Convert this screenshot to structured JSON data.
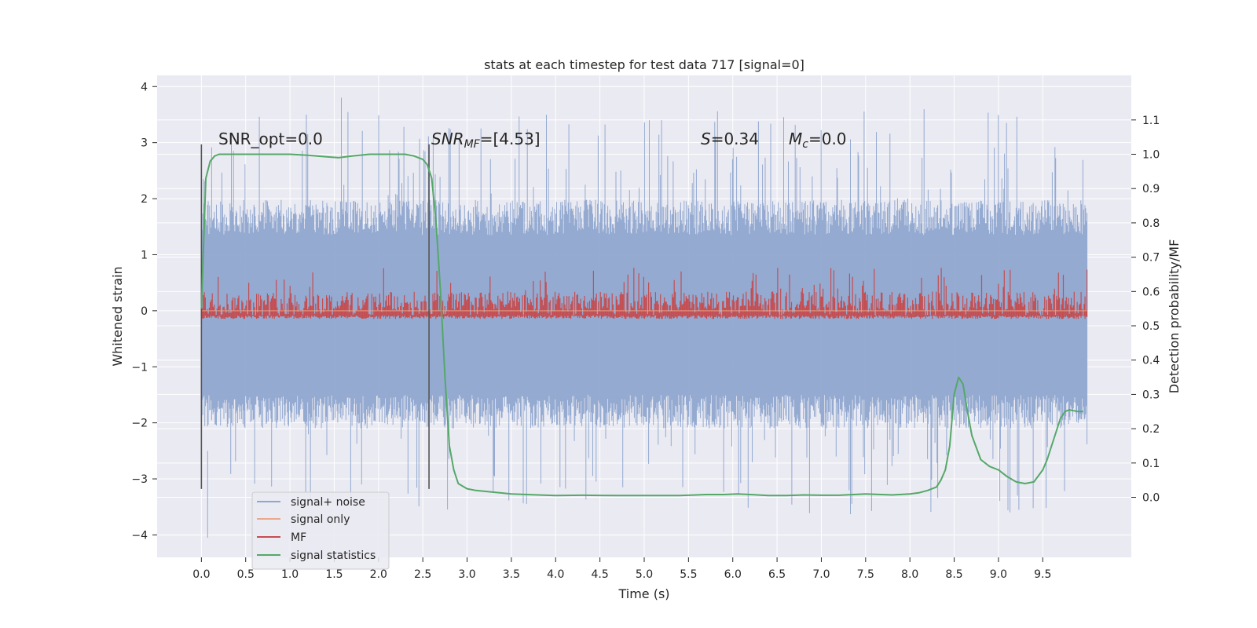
{
  "chart_data": {
    "type": "line",
    "title": "stats at each timestep for test data 717 [signal=0]",
    "xlabel": "Time (s)",
    "ylabel": "Whitened strain",
    "y2label": "Detection probability/MF",
    "xlim": [
      -0.5,
      10.5
    ],
    "ylim": [
      -4.4,
      4.2
    ],
    "y2lim": [
      -0.175,
      1.23
    ],
    "x_ticks": [
      0.0,
      0.5,
      1.0,
      1.5,
      2.0,
      2.5,
      3.0,
      3.5,
      4.0,
      4.5,
      5.0,
      5.5,
      6.0,
      6.5,
      7.0,
      7.5,
      8.0,
      8.5,
      9.0,
      9.5
    ],
    "y_ticks": [
      -4,
      -3,
      -2,
      -1,
      0,
      1,
      2,
      3,
      4
    ],
    "y2_ticks": [
      0.0,
      0.1,
      0.2,
      0.3,
      0.4,
      0.5,
      0.6,
      0.7,
      0.8,
      0.9,
      1.0,
      1.1
    ],
    "grid": true,
    "legend_position": "lower-left",
    "annotations": {
      "snr_opt": "SNR_opt=0.0",
      "snr_mf_italic": "SNR",
      "snr_mf_sub": "MF",
      "snr_mf_value": "=[4.53]",
      "s_italic": "S",
      "s_value": "=0.34",
      "mc_italic": "M",
      "mc_sub": "c",
      "mc_value": "=0.0"
    },
    "vertical_lines_x": [
      0.0,
      2.57
    ],
    "series": [
      {
        "name": "signal+ noise",
        "color": "#8fa6cf",
        "axis": "left",
        "kind": "noise-band",
        "x_range": [
          0.0,
          10.0
        ],
        "envelope": {
          "min": -4.05,
          "max": 3.8,
          "typical_low": -2.0,
          "typical_high": 1.8
        }
      },
      {
        "name": "signal only",
        "color": "#e9a98a",
        "axis": "left",
        "x": [
          0.0,
          10.0
        ],
        "y": [
          0.0,
          0.0
        ]
      },
      {
        "name": "MF",
        "color": "#c44e52",
        "axis": "right",
        "kind": "noise-band",
        "x_range": [
          0.0,
          10.0
        ],
        "envelope": {
          "min": 0.52,
          "max": 0.67,
          "typical_low": 0.53,
          "typical_high": 0.6
        }
      },
      {
        "name": "signal statistics",
        "color": "#55a868",
        "axis": "right",
        "x": [
          0.0,
          0.02,
          0.05,
          0.1,
          0.15,
          0.2,
          0.3,
          0.5,
          0.8,
          1.0,
          1.2,
          1.4,
          1.55,
          1.7,
          1.9,
          2.1,
          2.3,
          2.4,
          2.5,
          2.55,
          2.6,
          2.65,
          2.7,
          2.75,
          2.8,
          2.85,
          2.9,
          3.0,
          3.1,
          3.3,
          3.5,
          3.8,
          4.0,
          4.3,
          4.7,
          5.0,
          5.4,
          5.7,
          5.9,
          6.05,
          6.2,
          6.4,
          6.6,
          6.8,
          7.0,
          7.2,
          7.5,
          7.8,
          8.0,
          8.1,
          8.2,
          8.3,
          8.35,
          8.4,
          8.45,
          8.5,
          8.55,
          8.6,
          8.65,
          8.7,
          8.8,
          8.9,
          9.0,
          9.1,
          9.2,
          9.3,
          9.4,
          9.5,
          9.55,
          9.6,
          9.65,
          9.7,
          9.75,
          9.8,
          9.9,
          9.96
        ],
        "y": [
          0.55,
          0.7,
          0.93,
          0.98,
          0.995,
          1.0,
          1.0,
          1.0,
          1.0,
          1.0,
          0.997,
          0.993,
          0.99,
          0.995,
          1.0,
          1.0,
          1.0,
          0.995,
          0.985,
          0.97,
          0.93,
          0.8,
          0.6,
          0.35,
          0.15,
          0.08,
          0.04,
          0.025,
          0.02,
          0.015,
          0.01,
          0.007,
          0.005,
          0.006,
          0.005,
          0.005,
          0.005,
          0.008,
          0.008,
          0.01,
          0.008,
          0.005,
          0.005,
          0.007,
          0.006,
          0.006,
          0.01,
          0.007,
          0.01,
          0.013,
          0.02,
          0.03,
          0.05,
          0.08,
          0.15,
          0.3,
          0.35,
          0.33,
          0.25,
          0.18,
          0.11,
          0.09,
          0.08,
          0.06,
          0.045,
          0.04,
          0.045,
          0.08,
          0.11,
          0.15,
          0.19,
          0.23,
          0.25,
          0.255,
          0.25,
          0.25
        ]
      }
    ]
  }
}
